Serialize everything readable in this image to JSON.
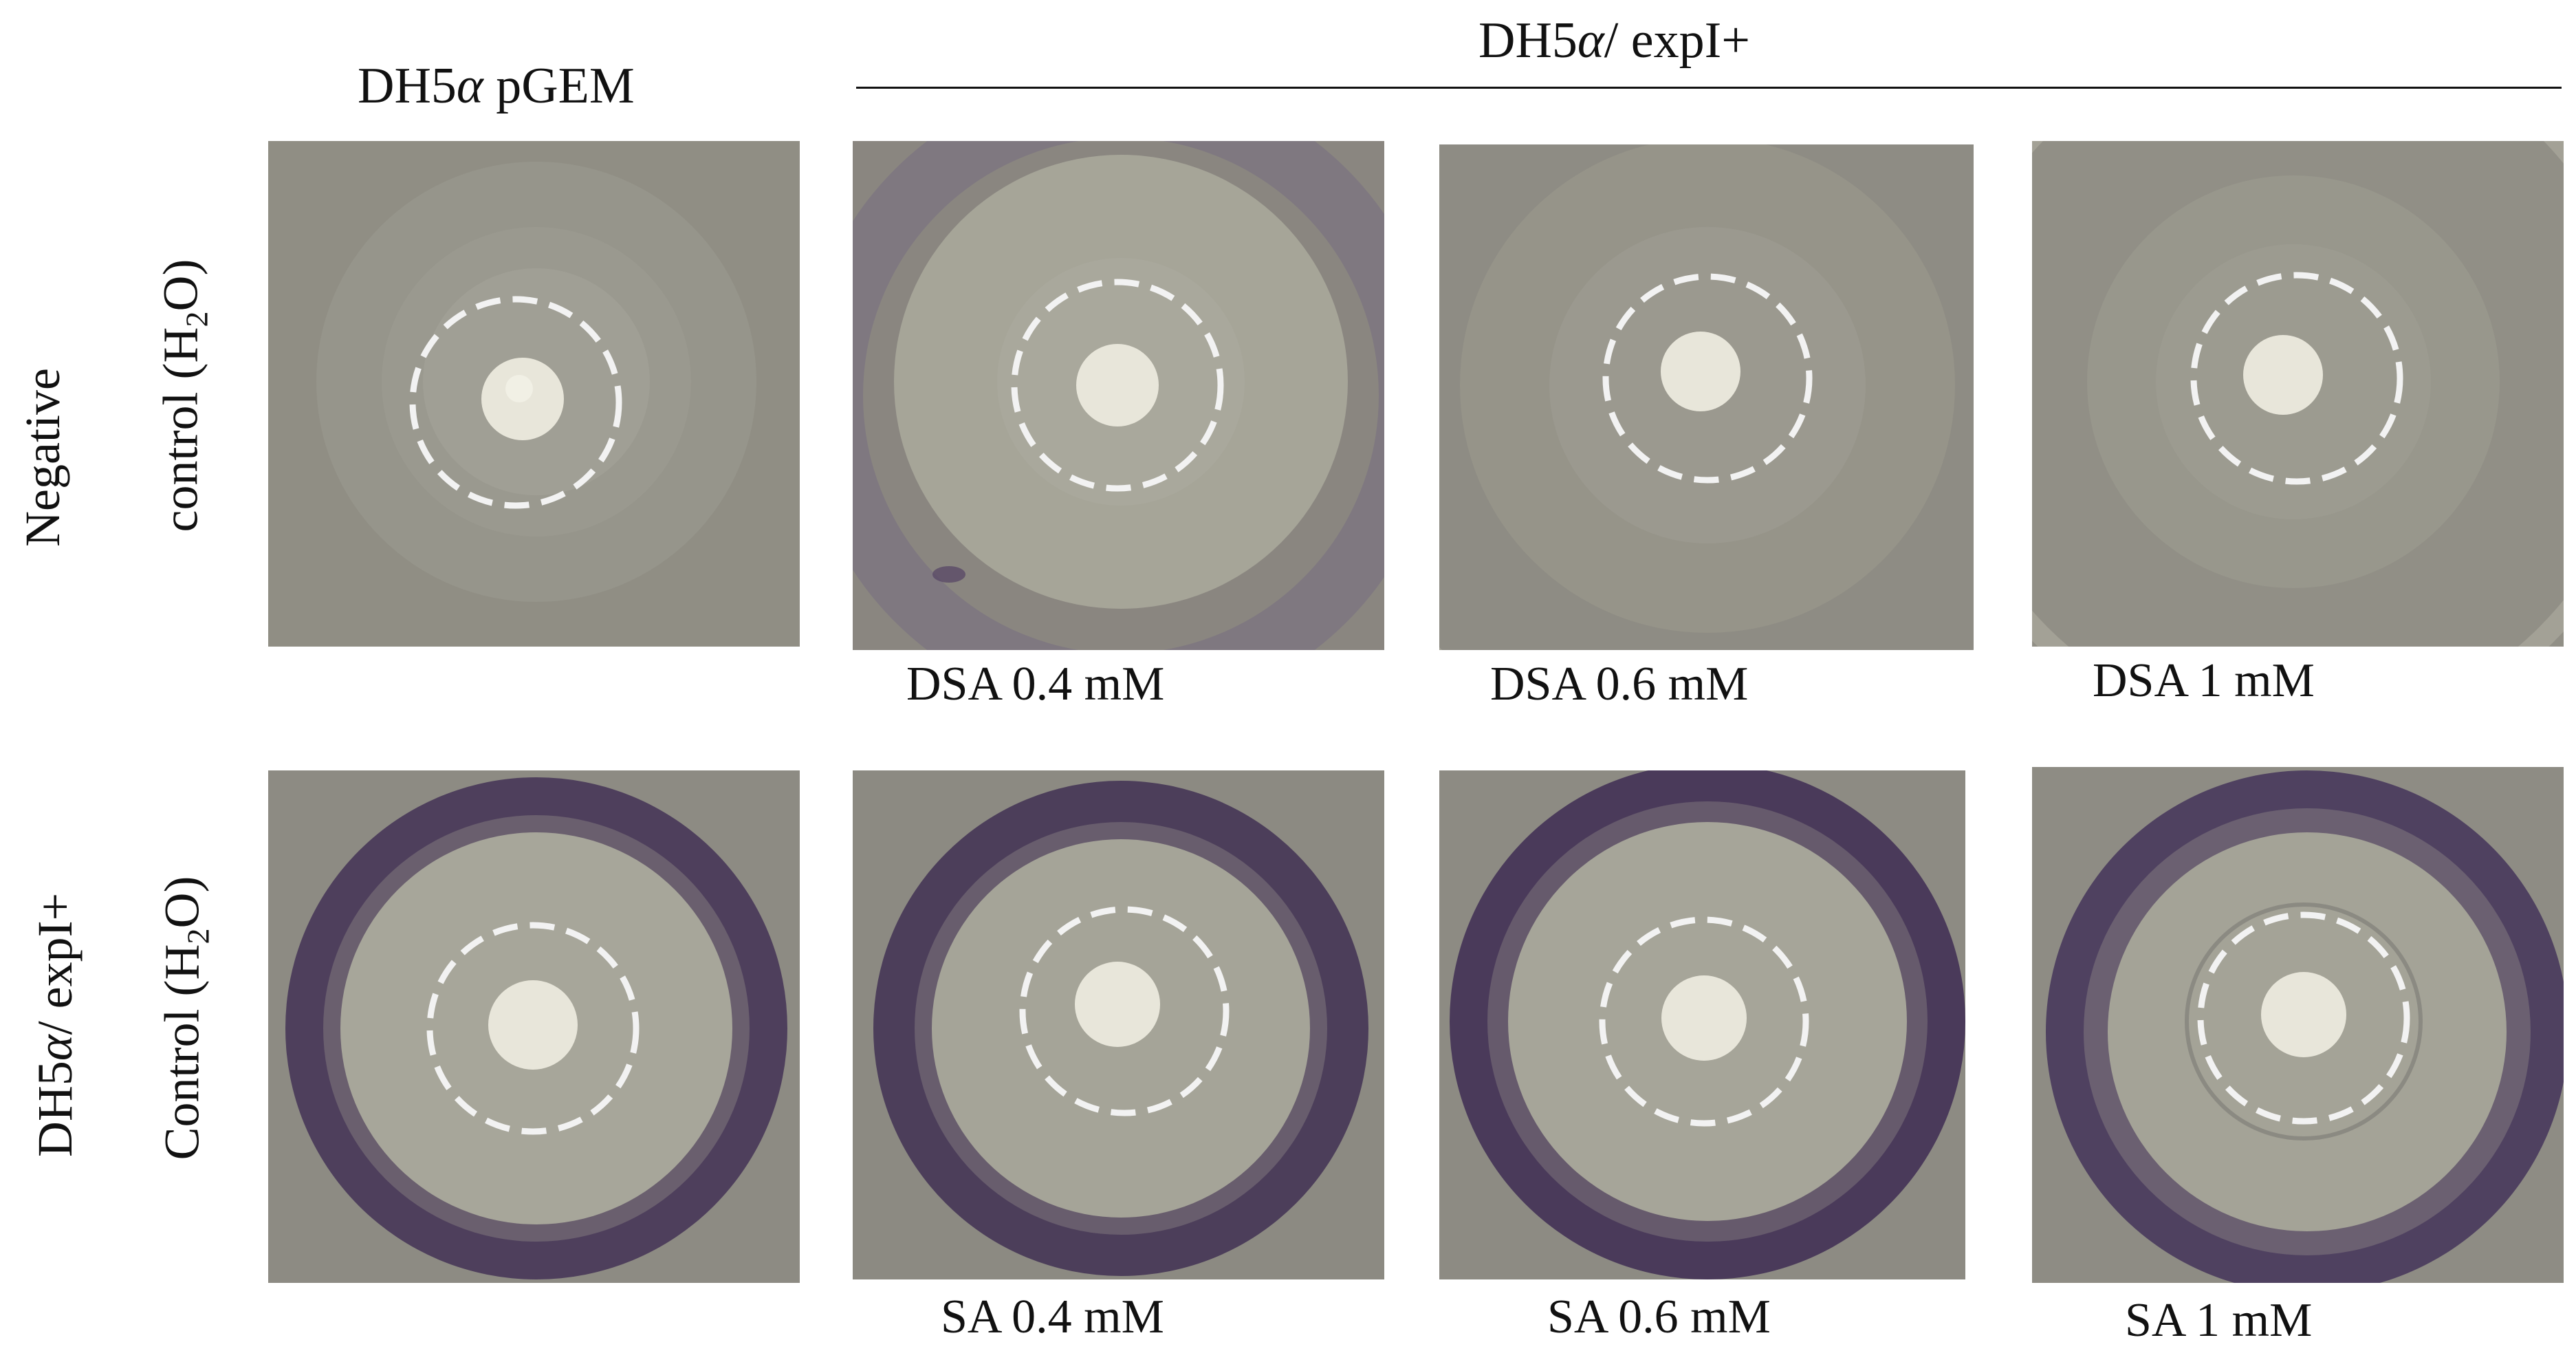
{
  "figure": {
    "col_header_control": "DH5α pGEM",
    "col_header_group": "DH5α/ expI+",
    "row1": {
      "label_line1": "Negative",
      "label_line2": "control (H2O)",
      "panels": [
        {
          "caption": "",
          "violacein_ring": "none"
        },
        {
          "caption": "DSA 0.4 mM",
          "violacein_ring": "faint"
        },
        {
          "caption": "DSA 0.6 mM",
          "violacein_ring": "none"
        },
        {
          "caption": "DSA 1 mM",
          "violacein_ring": "none"
        }
      ]
    },
    "row2": {
      "label_line1": "DH5α/ expI+",
      "label_line2": "Control (H2O)",
      "panels": [
        {
          "caption": "",
          "violacein_ring": "strong"
        },
        {
          "caption": "SA 0.4 mM",
          "violacein_ring": "strong"
        },
        {
          "caption": "SA 0.6 mM",
          "violacein_ring": "strong"
        },
        {
          "caption": "SA 1 mM",
          "violacein_ring": "strong"
        }
      ]
    },
    "colors": {
      "plate_background": "#8f8d83",
      "violacein": "#4a3a5a",
      "colony": "#e8e6da",
      "dashed_circle": "#f2f2f2"
    }
  }
}
